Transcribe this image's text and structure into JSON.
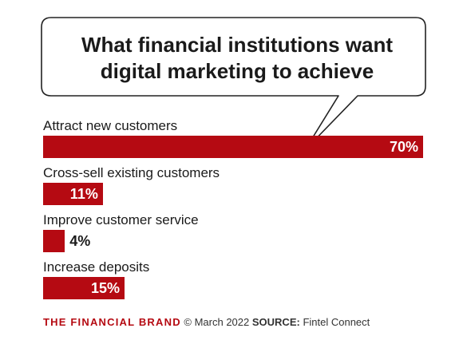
{
  "chart_data": {
    "type": "bar",
    "orientation": "horizontal",
    "title": "What financial institutions want\ndigital marketing to achieve",
    "categories": [
      "Attract new customers",
      "Cross-sell existing customers",
      "Improve customer service",
      "Increase deposits"
    ],
    "values": [
      70,
      11,
      4,
      15
    ],
    "value_labels": [
      "70%",
      "11%",
      "4%",
      "15%"
    ],
    "unit": "%",
    "xlim": [
      0,
      70
    ],
    "grid": false,
    "bar_color": "#b50a12"
  },
  "footer": {
    "brand": "THE FINANCIAL BRAND",
    "date": "© March 2022",
    "source_label": "SOURCE:",
    "source": "Fintel Connect"
  },
  "colors": {
    "accent": "#b50a12",
    "text": "#1a1a1a"
  }
}
